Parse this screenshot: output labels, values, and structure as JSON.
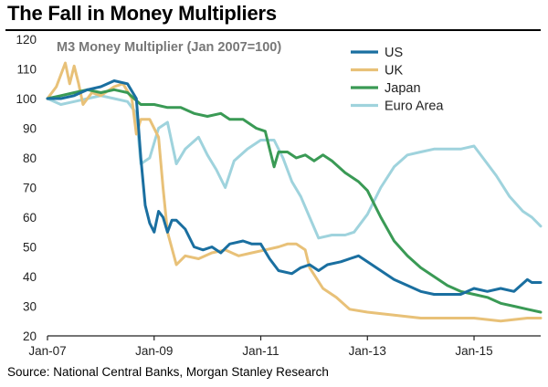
{
  "header": {
    "title": "The Fall in Money Multipliers"
  },
  "footer": {
    "source": "Source: National Central Banks, Morgan Stanley Research"
  },
  "chart_data": {
    "type": "line",
    "title": "The Fall in Money Multipliers",
    "subtitle": "M3 Money Multiplier (Jan 2007=100)",
    "xlabel": "",
    "ylabel": "",
    "x_range": [
      "2007-01",
      "2016-04"
    ],
    "ylim": [
      20,
      120
    ],
    "y_ticks": [
      20,
      30,
      40,
      50,
      60,
      70,
      80,
      90,
      100,
      110,
      120
    ],
    "x_tick_labels": [
      "Jan-07",
      "Jan-09",
      "Jan-11",
      "Jan-13",
      "Jan-15"
    ],
    "x_tick_values": [
      "2007-01",
      "2009-01",
      "2011-01",
      "2013-01",
      "2015-01"
    ],
    "grid": false,
    "legend_position": "top-right",
    "series": [
      {
        "name": "US",
        "color": "#1a6fa0",
        "points": [
          [
            "2007-01",
            100
          ],
          [
            "2007-04",
            100
          ],
          [
            "2007-07",
            101
          ],
          [
            "2007-10",
            103
          ],
          [
            "2008-01",
            104
          ],
          [
            "2008-04",
            106
          ],
          [
            "2008-07",
            105
          ],
          [
            "2008-09",
            100
          ],
          [
            "2008-10",
            80
          ],
          [
            "2008-11",
            64
          ],
          [
            "2008-12",
            58
          ],
          [
            "2009-01",
            55
          ],
          [
            "2009-02",
            62
          ],
          [
            "2009-03",
            60
          ],
          [
            "2009-04",
            55
          ],
          [
            "2009-05",
            59
          ],
          [
            "2009-06",
            59
          ],
          [
            "2009-08",
            56
          ],
          [
            "2009-10",
            50
          ],
          [
            "2009-12",
            49
          ],
          [
            "2010-02",
            50
          ],
          [
            "2010-04",
            48
          ],
          [
            "2010-06",
            51
          ],
          [
            "2010-09",
            52
          ],
          [
            "2010-11",
            51
          ],
          [
            "2011-01",
            51
          ],
          [
            "2011-03",
            46
          ],
          [
            "2011-05",
            42
          ],
          [
            "2011-08",
            41
          ],
          [
            "2011-10",
            43
          ],
          [
            "2011-12",
            44
          ],
          [
            "2012-02",
            42
          ],
          [
            "2012-04",
            44
          ],
          [
            "2012-07",
            45
          ],
          [
            "2012-09",
            46
          ],
          [
            "2012-11",
            47
          ],
          [
            "2013-01",
            45
          ],
          [
            "2013-04",
            42
          ],
          [
            "2013-07",
            39
          ],
          [
            "2013-10",
            37
          ],
          [
            "2014-01",
            35
          ],
          [
            "2014-04",
            34
          ],
          [
            "2014-07",
            34
          ],
          [
            "2014-10",
            34
          ],
          [
            "2015-01",
            36
          ],
          [
            "2015-04",
            35
          ],
          [
            "2015-07",
            36
          ],
          [
            "2015-10",
            35
          ],
          [
            "2016-01",
            39
          ],
          [
            "2016-02",
            38
          ],
          [
            "2016-04",
            38
          ]
        ]
      },
      {
        "name": "UK",
        "color": "#e8c178",
        "points": [
          [
            "2007-01",
            100
          ],
          [
            "2007-03",
            104
          ],
          [
            "2007-05",
            112
          ],
          [
            "2007-06",
            105
          ],
          [
            "2007-07",
            111
          ],
          [
            "2007-08",
            105
          ],
          [
            "2007-09",
            98
          ],
          [
            "2007-11",
            102
          ],
          [
            "2008-01",
            101
          ],
          [
            "2008-04",
            104
          ],
          [
            "2008-06",
            105
          ],
          [
            "2008-08",
            100
          ],
          [
            "2008-09",
            88
          ],
          [
            "2008-10",
            93
          ],
          [
            "2008-12",
            93
          ],
          [
            "2009-02",
            87
          ],
          [
            "2009-03",
            70
          ],
          [
            "2009-04",
            55
          ],
          [
            "2009-06",
            44
          ],
          [
            "2009-08",
            47
          ],
          [
            "2009-11",
            46
          ],
          [
            "2010-02",
            48
          ],
          [
            "2010-05",
            49
          ],
          [
            "2010-08",
            47
          ],
          [
            "2010-11",
            48
          ],
          [
            "2011-02",
            49
          ],
          [
            "2011-05",
            50
          ],
          [
            "2011-07",
            51
          ],
          [
            "2011-09",
            51
          ],
          [
            "2011-11",
            49
          ],
          [
            "2011-12",
            43
          ],
          [
            "2012-03",
            36
          ],
          [
            "2012-06",
            33
          ],
          [
            "2012-09",
            29
          ],
          [
            "2013-01",
            28
          ],
          [
            "2013-07",
            27
          ],
          [
            "2014-01",
            26
          ],
          [
            "2014-07",
            26
          ],
          [
            "2015-01",
            26
          ],
          [
            "2015-07",
            25
          ],
          [
            "2016-01",
            26
          ],
          [
            "2016-04",
            26
          ]
        ]
      },
      {
        "name": "Japan",
        "color": "#3a9a55",
        "points": [
          [
            "2007-01",
            100
          ],
          [
            "2007-04",
            101
          ],
          [
            "2007-07",
            102
          ],
          [
            "2007-10",
            103
          ],
          [
            "2008-01",
            102
          ],
          [
            "2008-04",
            103
          ],
          [
            "2008-07",
            102
          ],
          [
            "2008-10",
            98
          ],
          [
            "2009-01",
            98
          ],
          [
            "2009-04",
            97
          ],
          [
            "2009-07",
            97
          ],
          [
            "2009-10",
            95
          ],
          [
            "2010-01",
            94
          ],
          [
            "2010-04",
            95
          ],
          [
            "2010-06",
            93
          ],
          [
            "2010-09",
            93
          ],
          [
            "2010-12",
            90
          ],
          [
            "2011-02",
            89
          ],
          [
            "2011-03",
            83
          ],
          [
            "2011-04",
            77
          ],
          [
            "2011-05",
            82
          ],
          [
            "2011-07",
            82
          ],
          [
            "2011-09",
            80
          ],
          [
            "2011-11",
            81
          ],
          [
            "2012-01",
            79
          ],
          [
            "2012-03",
            81
          ],
          [
            "2012-05",
            79
          ],
          [
            "2012-08",
            75
          ],
          [
            "2012-11",
            72
          ],
          [
            "2013-01",
            69
          ],
          [
            "2013-04",
            60
          ],
          [
            "2013-07",
            52
          ],
          [
            "2013-10",
            47
          ],
          [
            "2014-01",
            43
          ],
          [
            "2014-04",
            40
          ],
          [
            "2014-07",
            37
          ],
          [
            "2014-10",
            35
          ],
          [
            "2015-01",
            34
          ],
          [
            "2015-04",
            33
          ],
          [
            "2015-07",
            31
          ],
          [
            "2015-10",
            30
          ],
          [
            "2016-01",
            29
          ],
          [
            "2016-04",
            28
          ]
        ]
      },
      {
        "name": "Euro Area",
        "color": "#9fd3dd",
        "points": [
          [
            "2007-01",
            100
          ],
          [
            "2007-04",
            98
          ],
          [
            "2007-07",
            99
          ],
          [
            "2007-10",
            100
          ],
          [
            "2008-01",
            101
          ],
          [
            "2008-04",
            100
          ],
          [
            "2008-07",
            99
          ],
          [
            "2008-09",
            95
          ],
          [
            "2008-10",
            78
          ],
          [
            "2008-12",
            80
          ],
          [
            "2009-02",
            90
          ],
          [
            "2009-04",
            92
          ],
          [
            "2009-06",
            78
          ],
          [
            "2009-08",
            83
          ],
          [
            "2009-11",
            87
          ],
          [
            "2010-01",
            81
          ],
          [
            "2010-03",
            76
          ],
          [
            "2010-05",
            70
          ],
          [
            "2010-07",
            79
          ],
          [
            "2010-10",
            83
          ],
          [
            "2011-01",
            86
          ],
          [
            "2011-04",
            86
          ],
          [
            "2011-06",
            80
          ],
          [
            "2011-08",
            72
          ],
          [
            "2011-10",
            67
          ],
          [
            "2011-12",
            60
          ],
          [
            "2012-02",
            53
          ],
          [
            "2012-05",
            54
          ],
          [
            "2012-08",
            54
          ],
          [
            "2012-10",
            55
          ],
          [
            "2013-01",
            61
          ],
          [
            "2013-04",
            70
          ],
          [
            "2013-07",
            77
          ],
          [
            "2013-10",
            81
          ],
          [
            "2014-01",
            82
          ],
          [
            "2014-04",
            83
          ],
          [
            "2014-07",
            83
          ],
          [
            "2014-10",
            83
          ],
          [
            "2015-01",
            84
          ],
          [
            "2015-03",
            80
          ],
          [
            "2015-06",
            74
          ],
          [
            "2015-09",
            67
          ],
          [
            "2015-12",
            62
          ],
          [
            "2016-02",
            60
          ],
          [
            "2016-04",
            57
          ]
        ]
      }
    ]
  }
}
